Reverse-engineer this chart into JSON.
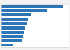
{
  "values": [
    10500,
    7800,
    5200,
    4600,
    4300,
    4100,
    3900,
    3700,
    3500,
    1900
  ],
  "bar_color": "#2e75b6",
  "background_color": "#f2f2f2",
  "plot_bg": "#ffffff",
  "grid_color": "#cccccc",
  "border_color": "#cccccc",
  "xlim_max": 11500,
  "figsize": [
    1.0,
    0.71
  ],
  "dpi": 100
}
